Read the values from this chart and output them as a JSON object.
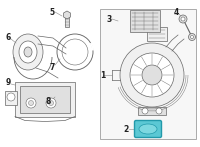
{
  "bg_color": "#ffffff",
  "line_color": "#666666",
  "light_fill": "#f0f0f0",
  "mid_fill": "#e0e0e0",
  "dark_fill": "#cccccc",
  "highlight_color": "#5bc8d4",
  "highlight_edge": "#2299aa",
  "label_color": "#222222",
  "label_fontsize": 5.5,
  "rect_edge": "#aaaaaa",
  "rect_fill": "#f7f7f7"
}
